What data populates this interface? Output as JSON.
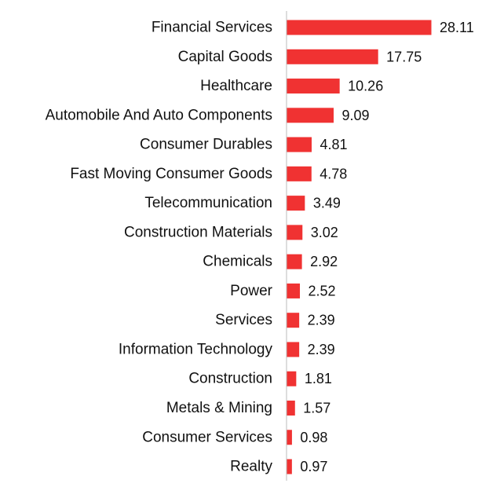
{
  "chart_data": {
    "type": "bar",
    "orientation": "horizontal",
    "categories": [
      "Financial Services",
      "Capital Goods",
      "Healthcare",
      "Automobile And Auto Components",
      "Consumer Durables",
      "Fast Moving Consumer Goods",
      "Telecommunication",
      "Construction Materials",
      "Chemicals",
      "Power",
      "Services",
      "Information Technology",
      "Construction",
      "Metals & Mining",
      "Consumer Services",
      "Realty"
    ],
    "values": [
      28.11,
      17.75,
      10.26,
      9.09,
      4.81,
      4.78,
      3.49,
      3.02,
      2.92,
      2.52,
      2.39,
      2.39,
      1.81,
      1.57,
      0.98,
      0.97
    ],
    "value_labels": [
      "28.11",
      "17.75",
      "10.26",
      "9.09",
      "4.81",
      "4.78",
      "3.49",
      "3.02",
      "2.92",
      "2.52",
      "2.39",
      "2.39",
      "1.81",
      "1.57",
      "0.98",
      "0.97"
    ],
    "title": "",
    "xlabel": "",
    "ylabel": "",
    "xlim": [
      0,
      28.11
    ],
    "grid": false,
    "legend": "none",
    "bar_color": "#f03232",
    "axis_color": "#bbbbbb"
  }
}
